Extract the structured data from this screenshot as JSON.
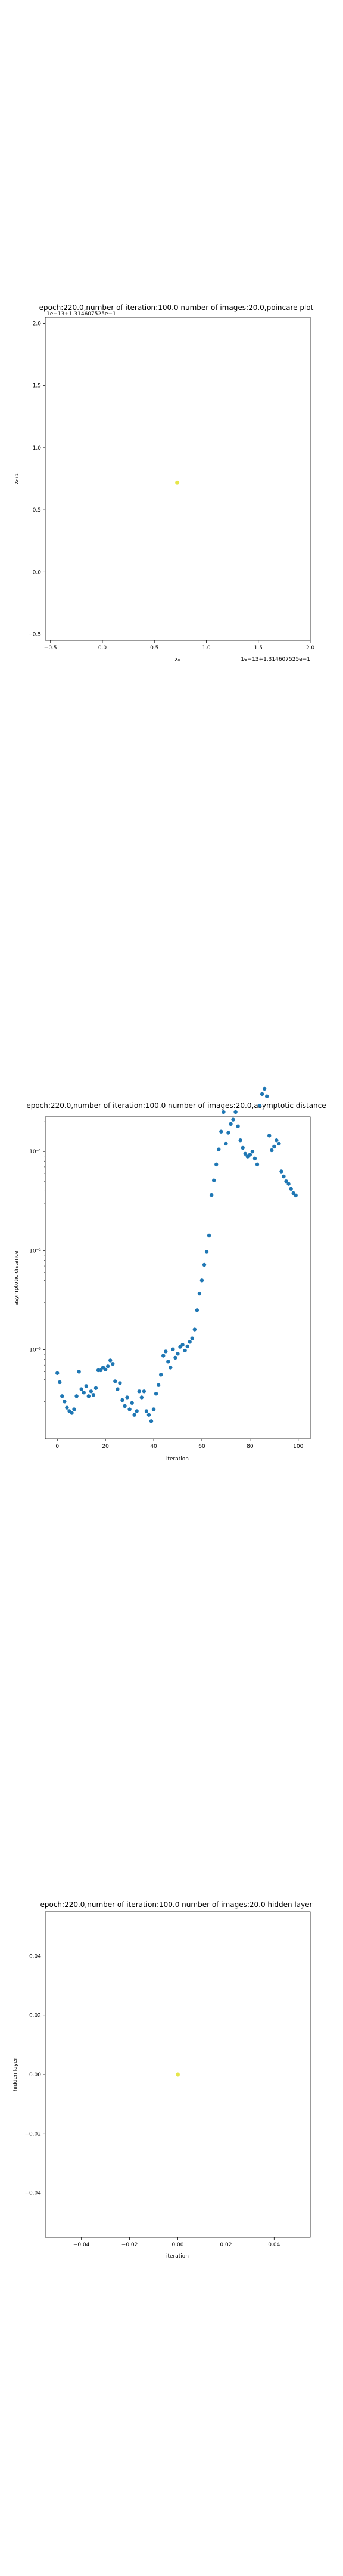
{
  "chart_data": [
    {
      "type": "scatter",
      "title": "epoch:220.0,number of iteration:100.0  number of images:20.0,poincare plot",
      "xlabel": "xₙ",
      "ylabel": "xₙ₊₁",
      "x_offset_text": "1e−13+1.314607525e−1",
      "y_offset_text": "1e−13+1.314607525e−1",
      "xlim": [
        -0.55,
        2.0
      ],
      "ylim": [
        -0.55,
        2.05
      ],
      "x_ticks": [
        "−0.5",
        "0.0",
        "0.5",
        "1.0",
        "1.5",
        "2.0"
      ],
      "y_ticks": [
        "−0.5",
        "0.0",
        "0.5",
        "1.0",
        "1.5",
        "2.0"
      ],
      "x_tick_values": [
        -0.5,
        0.0,
        0.5,
        1.0,
        1.5,
        2.0
      ],
      "y_tick_values": [
        -0.5,
        0.0,
        0.5,
        1.0,
        1.5,
        2.0
      ],
      "points": [
        {
          "x": 0.72,
          "y": 0.72
        }
      ],
      "marker_color": "#e6e64a"
    },
    {
      "type": "scatter",
      "title": "epoch:220.0,number of iteration:100.0  number of images:20.0,asymptotic distance",
      "xlabel": "iteration",
      "ylabel": "asymptotic distance",
      "yscale": "log",
      "xlim": [
        -5,
        105
      ],
      "ylim_log10": [
        -3.9,
        -0.65
      ],
      "x_ticks": [
        "0",
        "20",
        "40",
        "60",
        "80",
        "100"
      ],
      "x_tick_values": [
        0,
        20,
        40,
        60,
        80,
        100
      ],
      "y_ticks": [
        "10⁻³",
        "10⁻²",
        "10⁻¹"
      ],
      "y_tick_log10": [
        -3,
        -2,
        -1
      ],
      "marker_color": "#1f77b4",
      "x": [
        0,
        1,
        2,
        3,
        4,
        5,
        6,
        7,
        8,
        9,
        10,
        11,
        12,
        13,
        14,
        15,
        16,
        17,
        18,
        19,
        20,
        21,
        22,
        23,
        24,
        25,
        26,
        27,
        28,
        29,
        30,
        31,
        32,
        33,
        34,
        35,
        36,
        37,
        38,
        39,
        40,
        41,
        42,
        43,
        44,
        45,
        46,
        47,
        48,
        49,
        50,
        51,
        52,
        53,
        54,
        55,
        56,
        57,
        58,
        59,
        60,
        61,
        62,
        63,
        64,
        65,
        66,
        67,
        68,
        69,
        70,
        71,
        72,
        73,
        74,
        75,
        76,
        77,
        78,
        79,
        80,
        81,
        82,
        83,
        84,
        85,
        86,
        87,
        88,
        89,
        90,
        91,
        92,
        93,
        94,
        95,
        96,
        97,
        98,
        99
      ],
      "y": [
        0.00058,
        0.00047,
        0.00034,
        0.0003,
        0.00026,
        0.00024,
        0.00023,
        0.00025,
        0.00034,
        0.0006,
        0.0004,
        0.00037,
        0.00043,
        0.00034,
        0.00038,
        0.00035,
        0.00041,
        0.00062,
        0.00062,
        0.00066,
        0.00063,
        0.00068,
        0.00078,
        0.00072,
        0.00048,
        0.0004,
        0.00046,
        0.00031,
        0.00027,
        0.00033,
        0.00025,
        0.00029,
        0.00022,
        0.00024,
        0.00038,
        0.00033,
        0.00038,
        0.00024,
        0.00022,
        0.00019,
        0.00025,
        0.00036,
        0.00044,
        0.00056,
        0.00087,
        0.00096,
        0.00076,
        0.00066,
        0.00101,
        0.00083,
        0.00091,
        0.00107,
        0.00112,
        0.00098,
        0.00108,
        0.0012,
        0.0013,
        0.0016,
        0.0025,
        0.0037,
        0.005,
        0.0072,
        0.0097,
        0.0142,
        0.0364,
        0.051,
        0.074,
        0.105,
        0.159,
        0.25,
        0.12,
        0.155,
        0.19,
        0.21,
        0.25,
        0.18,
        0.13,
        0.109,
        0.095,
        0.089,
        0.093,
        0.1,
        0.085,
        0.074,
        0.29,
        0.38,
        0.43,
        0.36,
        0.145,
        0.103,
        0.112,
        0.13,
        0.12,
        0.063,
        0.056,
        0.05,
        0.047,
        0.042,
        0.038,
        0.036
      ]
    },
    {
      "type": "scatter",
      "title": "epoch:220.0,number of iteration:100.0  number of images:20.0 hidden layer",
      "xlabel": "iteration",
      "ylabel": "hidden layer",
      "xlim": [
        -0.055,
        0.055
      ],
      "ylim": [
        -0.055,
        0.055
      ],
      "x_ticks": [
        "−0.04",
        "−0.02",
        "0.00",
        "0.02",
        "0.04"
      ],
      "y_ticks": [
        "−0.04",
        "−0.02",
        "0.00",
        "0.02",
        "0.04"
      ],
      "x_tick_values": [
        -0.04,
        -0.02,
        0.0,
        0.02,
        0.04
      ],
      "y_tick_values": [
        -0.04,
        -0.02,
        0.0,
        0.02,
        0.04
      ],
      "points": [
        {
          "x": 0.0,
          "y": 0.0
        }
      ],
      "marker_color": "#e6e64a"
    }
  ]
}
